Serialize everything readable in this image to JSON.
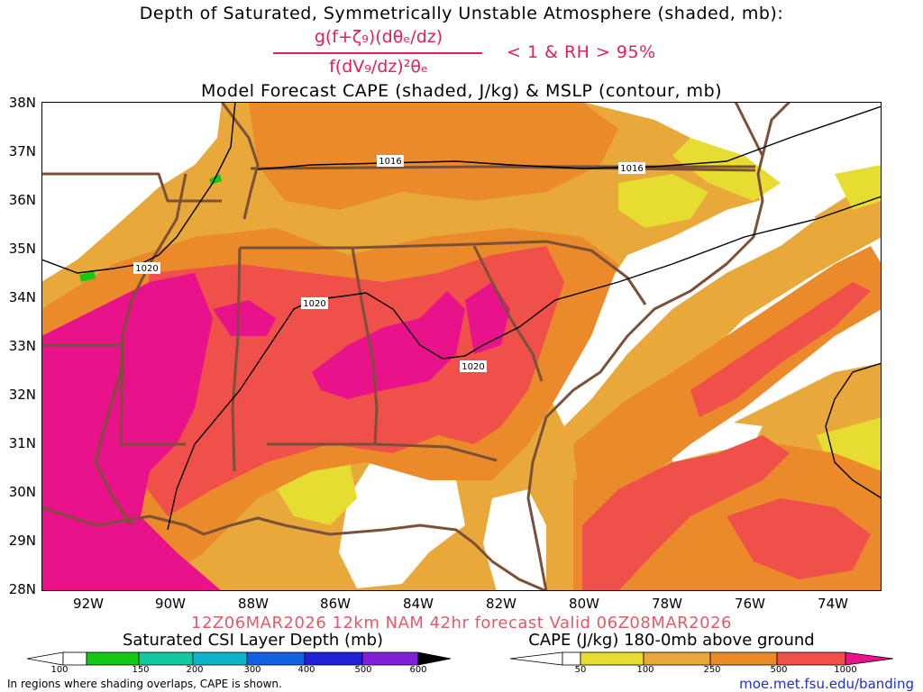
{
  "title": {
    "line1": "Depth of Saturated, Symmetrically Unstable Atmosphere (shaded, mb):",
    "numerator": "g(f+ζ₉)(dθₑ/dz)",
    "denominator": "f(dV₉/dz)²θₑ",
    "condition": "< 1 & RH > 95%",
    "line3": "Model Forecast CAPE (shaded, J/kg) & MSLP (contour, mb)"
  },
  "map": {
    "lat_labels": [
      "38N",
      "37N",
      "36N",
      "35N",
      "34N",
      "33N",
      "32N",
      "31N",
      "30N",
      "29N",
      "28N"
    ],
    "lon_labels": [
      "92W",
      "90W",
      "88W",
      "86W",
      "84W",
      "82W",
      "80W",
      "78W",
      "76W",
      "74W"
    ],
    "isobars": [
      {
        "label": "1016"
      },
      {
        "label": "1016"
      },
      {
        "label": "1020"
      },
      {
        "label": "1020"
      },
      {
        "label": "1020"
      }
    ],
    "colors": {
      "cape_50": "#e6dc32",
      "cape_100": "#e8a83a",
      "cape_250": "#ea8a2a",
      "cape_500": "#f0504a",
      "cape_1000": "#e8128a",
      "border": "#7a5038",
      "isobar": "#000000"
    }
  },
  "valid_text": "12Z06MAR2026 12km NAM 42hr forecast Valid 06Z08MAR2026",
  "legend_csi": {
    "label": "Saturated CSI Layer Depth (mb)",
    "ticks": [
      "100",
      "150",
      "200",
      "300",
      "400",
      "500",
      "600"
    ],
    "colors": [
      "#ffffff",
      "#16c816",
      "#12c8a0",
      "#10b4c8",
      "#1060e0",
      "#2020d8",
      "#8020d8",
      "#000000"
    ]
  },
  "legend_cape": {
    "label": "CAPE (J/kg) 180-0mb above ground",
    "ticks": [
      "50",
      "100",
      "250",
      "500",
      "1000"
    ],
    "colors": [
      "#ffffff",
      "#e6dc32",
      "#e8a83a",
      "#ea8a2a",
      "#f0504a",
      "#e8128a"
    ]
  },
  "footer": {
    "note": "In regions where shading overlaps, CAPE is shown.",
    "url": "moe.met.fsu.edu/banding"
  }
}
